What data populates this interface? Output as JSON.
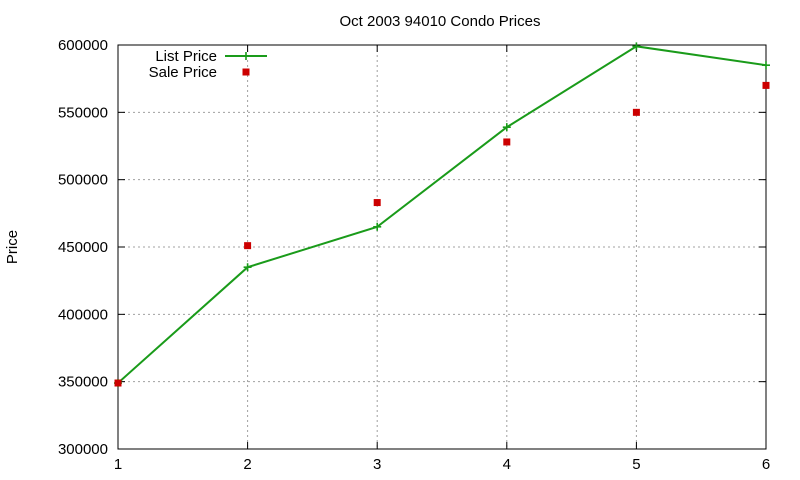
{
  "chart_data": {
    "type": "line",
    "title": "Oct 2003 94010 Condo Prices",
    "xlabel": "",
    "ylabel": "Price",
    "xlim": [
      1,
      6
    ],
    "ylim": [
      300000,
      600000
    ],
    "x_ticks": [
      "1",
      "2",
      "3",
      "4",
      "5",
      "6"
    ],
    "y_ticks": [
      "300000",
      "350000",
      "400000",
      "450000",
      "500000",
      "550000",
      "600000"
    ],
    "grid": true,
    "legend_position": "top-left",
    "series": [
      {
        "name": "List Price",
        "style": "line+cross",
        "color": "#1a9b1a",
        "x": [
          1,
          2,
          3,
          4,
          5,
          6
        ],
        "values": [
          349000,
          435000,
          465000,
          539000,
          599000,
          585000
        ]
      },
      {
        "name": "Sale Price",
        "style": "square",
        "color": "#cc0000",
        "x": [
          1,
          2,
          3,
          4,
          5,
          6
        ],
        "values": [
          349000,
          451000,
          483000,
          528000,
          550000,
          570000
        ]
      }
    ]
  }
}
